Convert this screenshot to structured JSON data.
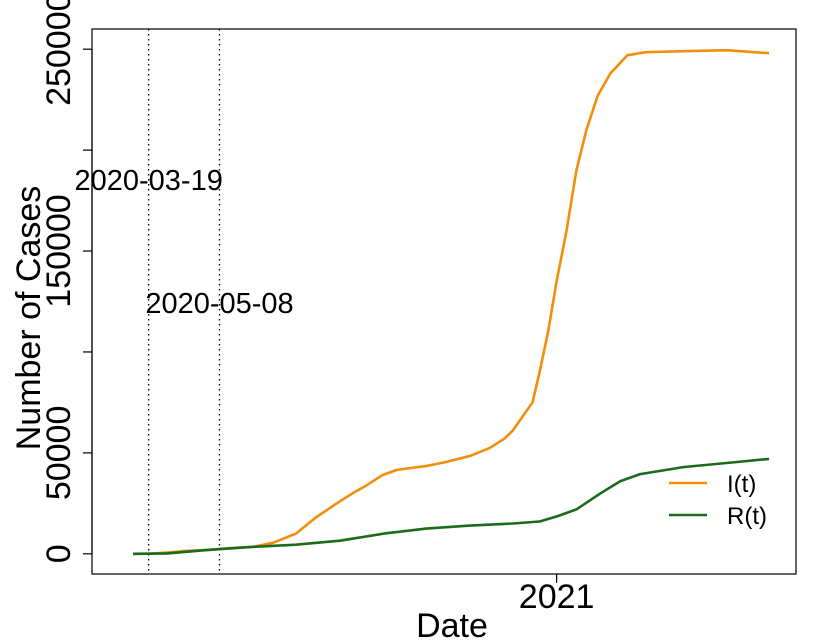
{
  "chart_data": {
    "type": "line",
    "xlabel": "Date",
    "ylabel": "Number of Cases",
    "xlim": [
      "2020-02-08",
      "2021-06-19"
    ],
    "ylim": [
      -10000,
      260000
    ],
    "x_tick_labels": [
      {
        "date": "2021-01-01",
        "label": "2021"
      }
    ],
    "y_ticks": [
      0,
      50000,
      100000,
      150000,
      200000,
      250000
    ],
    "y_tick_labels": [
      {
        "value": 0,
        "label": "0"
      },
      {
        "value": 50000,
        "label": "50000"
      },
      {
        "value": 150000,
        "label": "150000"
      },
      {
        "value": 250000,
        "label": "250000"
      }
    ],
    "vlines": [
      {
        "date": "2020-03-19",
        "label": "2020-03-19"
      },
      {
        "date": "2020-05-08",
        "label": "2020-05-08"
      }
    ],
    "legend": {
      "position": "bottom-right"
    },
    "series": [
      {
        "name": "I(t)",
        "color": "#f28e0c",
        "points": [
          [
            "2020-03-08",
            0
          ],
          [
            "2020-03-19",
            0
          ],
          [
            "2020-04-01",
            600
          ],
          [
            "2020-04-15",
            1500
          ],
          [
            "2020-05-01",
            2000
          ],
          [
            "2020-05-15",
            2800
          ],
          [
            "2020-06-01",
            3500
          ],
          [
            "2020-06-15",
            5500
          ],
          [
            "2020-07-01",
            10000
          ],
          [
            "2020-07-15",
            18000
          ],
          [
            "2020-08-01",
            26000
          ],
          [
            "2020-08-10",
            30000
          ],
          [
            "2020-08-20",
            34000
          ],
          [
            "2020-08-31",
            39000
          ],
          [
            "2020-09-10",
            41500
          ],
          [
            "2020-09-20",
            42500
          ],
          [
            "2020-10-01",
            43500
          ],
          [
            "2020-10-15",
            45500
          ],
          [
            "2020-11-01",
            48500
          ],
          [
            "2020-11-15",
            52500
          ],
          [
            "2020-11-25",
            57000
          ],
          [
            "2020-12-01",
            61000
          ],
          [
            "2020-12-10",
            70000
          ],
          [
            "2020-12-15",
            75000
          ],
          [
            "2020-12-20",
            90000
          ],
          [
            "2020-12-26",
            110000
          ],
          [
            "2021-01-01",
            135000
          ],
          [
            "2021-01-08",
            160000
          ],
          [
            "2021-01-15",
            190000
          ],
          [
            "2021-01-22",
            210000
          ],
          [
            "2021-01-30",
            227000
          ],
          [
            "2021-02-08",
            238000
          ],
          [
            "2021-02-20",
            247000
          ],
          [
            "2021-03-05",
            248500
          ],
          [
            "2021-04-01",
            249000
          ],
          [
            "2021-05-01",
            249500
          ],
          [
            "2021-05-31",
            248000
          ]
        ]
      },
      {
        "name": "R(t)",
        "color": "#1a6b1a",
        "points": [
          [
            "2020-03-08",
            0
          ],
          [
            "2020-04-01",
            200
          ],
          [
            "2020-05-01",
            2000
          ],
          [
            "2020-06-01",
            3500
          ],
          [
            "2020-07-01",
            4500
          ],
          [
            "2020-08-01",
            6500
          ],
          [
            "2020-09-01",
            10000
          ],
          [
            "2020-10-01",
            12500
          ],
          [
            "2020-11-01",
            14000
          ],
          [
            "2020-12-01",
            15000
          ],
          [
            "2020-12-20",
            16000
          ],
          [
            "2021-01-01",
            18500
          ],
          [
            "2021-01-15",
            22000
          ],
          [
            "2021-02-01",
            30000
          ],
          [
            "2021-02-15",
            36000
          ],
          [
            "2021-03-01",
            39500
          ],
          [
            "2021-04-01",
            43000
          ],
          [
            "2021-05-01",
            45000
          ],
          [
            "2021-05-31",
            47000
          ]
        ]
      }
    ]
  }
}
